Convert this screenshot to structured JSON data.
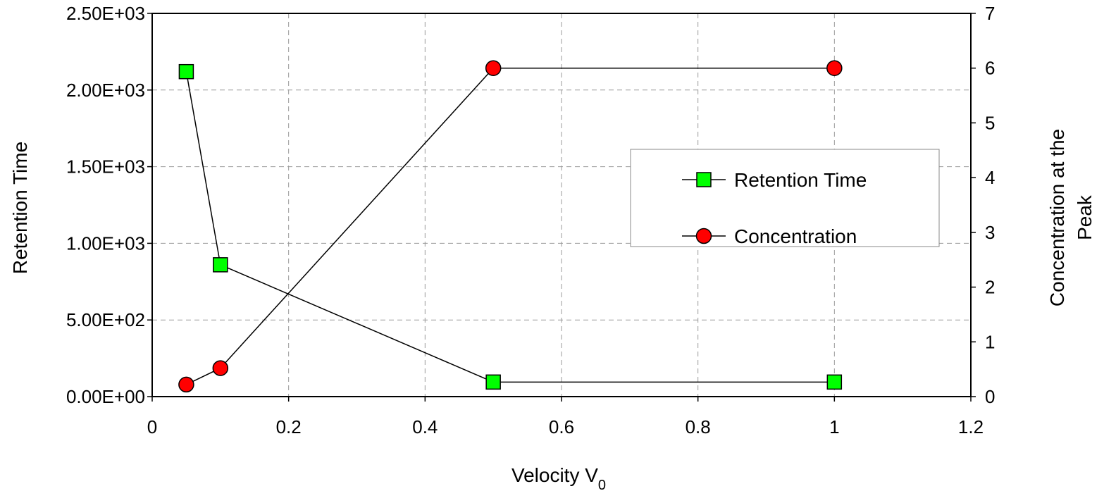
{
  "chart_data": {
    "type": "line",
    "title": "",
    "xlabel": "Velocity V",
    "xlabel_subscript": "0",
    "ylabel_left": "Retention Time",
    "ylabel_right_line1": "Concentration at the",
    "ylabel_right_line2": "Peak",
    "xlim": [
      0,
      1.2
    ],
    "ylim_left": [
      0,
      2500
    ],
    "ylim_right": [
      0,
      7
    ],
    "x_ticks": [
      "0",
      "0.2",
      "0.4",
      "0.6",
      "0.8",
      "1",
      "1.2"
    ],
    "y_left_ticks": [
      "0.00E+00",
      "5.00E+02",
      "1.00E+03",
      "1.50E+03",
      "2.00E+03",
      "2.50E+03"
    ],
    "y_right_ticks": [
      "0",
      "1",
      "2",
      "3",
      "4",
      "5",
      "6",
      "7"
    ],
    "grid": true,
    "legend_position": "right",
    "series": [
      {
        "name": "Retention Time",
        "axis": "left",
        "marker": "square",
        "color": "#00ff00",
        "x": [
          0.05,
          0.1,
          0.5,
          1.0
        ],
        "values": [
          2120,
          860,
          95,
          95
        ]
      },
      {
        "name": "Concentration",
        "axis": "right",
        "marker": "circle",
        "color": "#ff0000",
        "x": [
          0.05,
          0.1,
          0.5,
          1.0
        ],
        "values": [
          0.22,
          0.52,
          6.0,
          6.0
        ]
      }
    ]
  }
}
